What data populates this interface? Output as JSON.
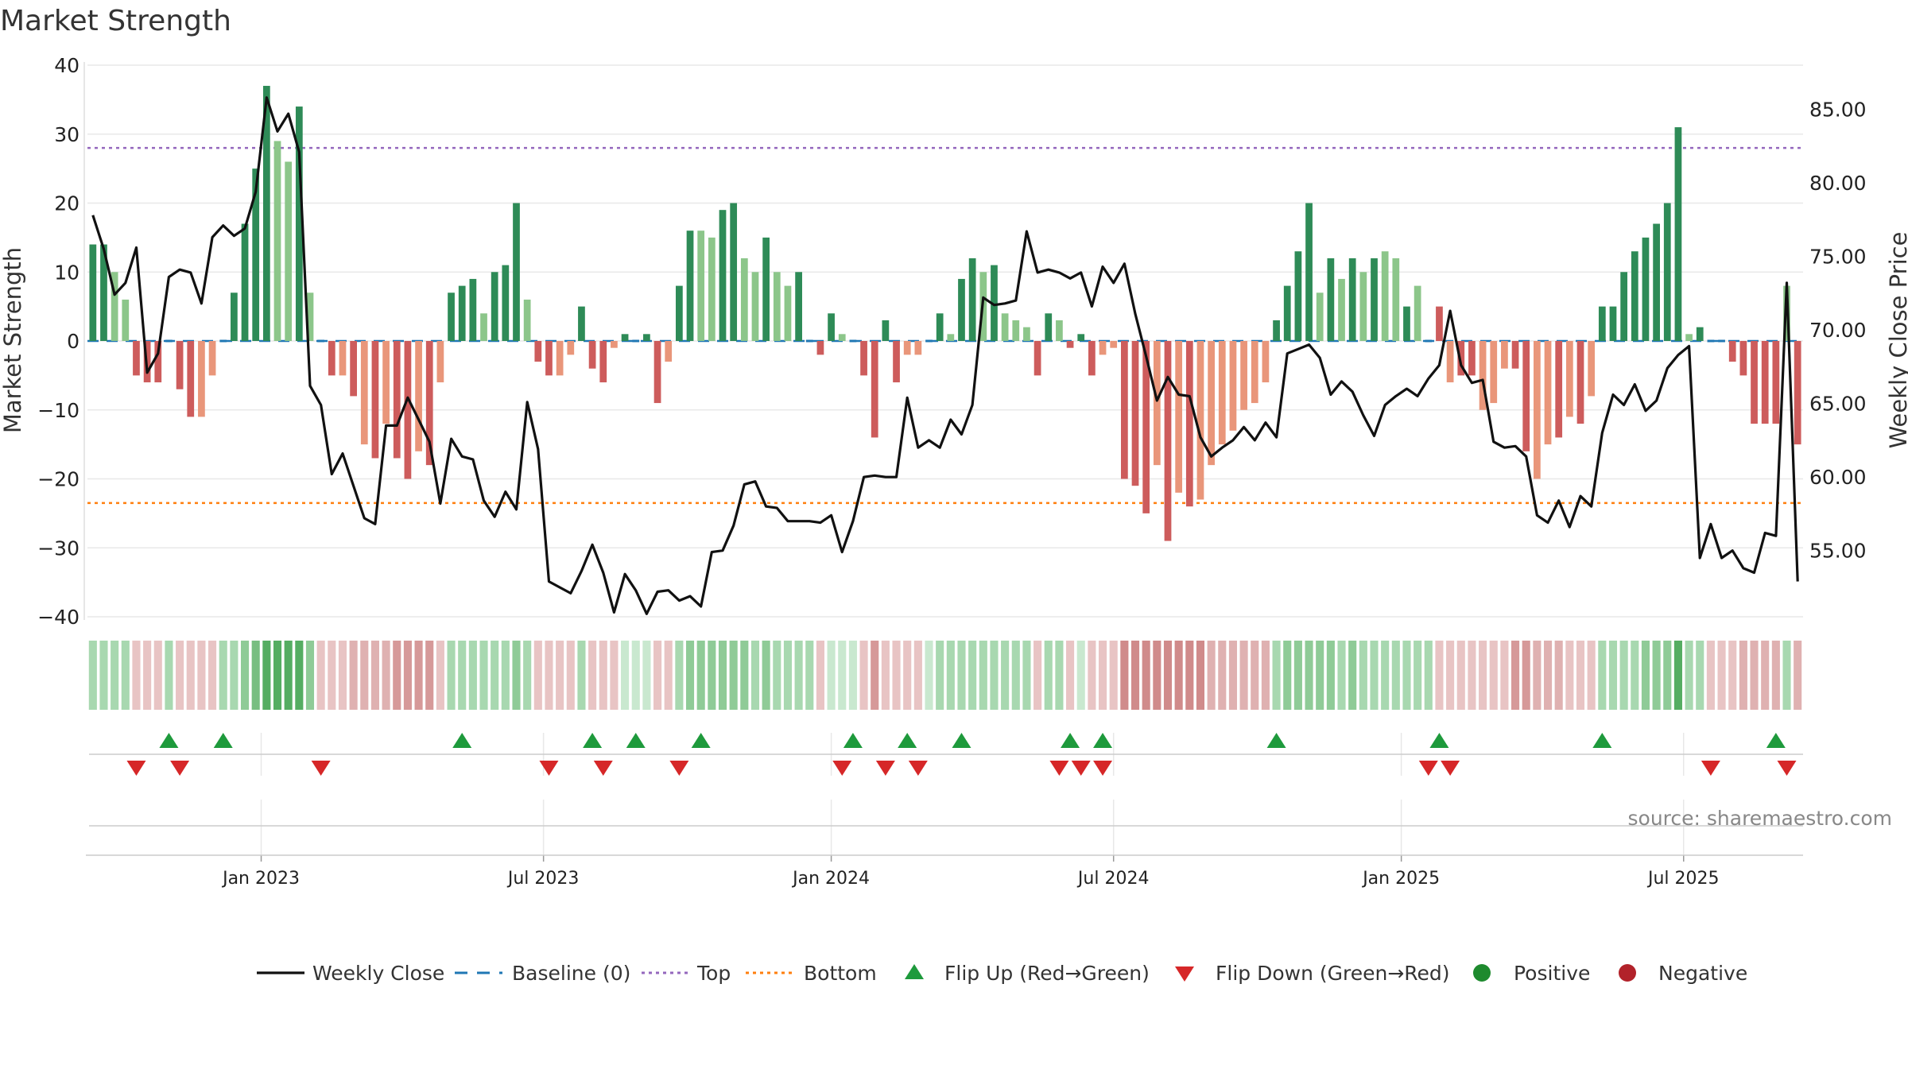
{
  "chart_data": {
    "type": "bar",
    "title": "Market Strength",
    "ylabel_left": "Market Strength",
    "ylabel_right": "Weekly Close Price",
    "ylim_left": [
      -40,
      40
    ],
    "yticks_left": [
      40,
      30,
      20,
      10,
      0,
      -10,
      -20,
      -30,
      -40
    ],
    "yticks_left_labels": [
      "40",
      "30",
      "20",
      "10",
      "0",
      "−10",
      "−20",
      "−30",
      "−40"
    ],
    "ylim_right": [
      50.5,
      88
    ],
    "yticks_right": [
      85,
      80,
      75,
      70,
      65,
      60,
      55
    ],
    "yticks_right_labels": [
      "85.00",
      "80.00",
      "75.00",
      "70.00",
      "65.00",
      "60.00",
      "55.00"
    ],
    "top_level": 28,
    "bottom_level": -23.5,
    "baseline": 0,
    "x_start_week": 0,
    "x_end_week": 160,
    "date_ticks": [
      {
        "label": "Jan 2023",
        "week": 15.5
      },
      {
        "label": "Jul 2023",
        "week": 41.5
      },
      {
        "label": "Jan 2024",
        "week": 68
      },
      {
        "label": "Jul 2024",
        "week": 94
      },
      {
        "label": "Jan 2025",
        "week": 120.5
      },
      {
        "label": "Jul 2025",
        "week": 146.5
      }
    ],
    "strength": [
      14,
      14,
      10,
      6,
      -5,
      -6,
      -6,
      0,
      -7,
      -11,
      -11,
      -5,
      0,
      7,
      17,
      25,
      37,
      29,
      26,
      34,
      7,
      0,
      -5,
      -5,
      -8,
      -15,
      -17,
      -12,
      -17,
      -20,
      -16,
      -18,
      -6,
      7,
      8,
      9,
      4,
      10,
      11,
      20,
      6,
      -3,
      -5,
      -5,
      -2,
      5,
      -4,
      -6,
      -1,
      1,
      0,
      1,
      -9,
      -3,
      8,
      16,
      16,
      15,
      19,
      20,
      12,
      10,
      15,
      10,
      8,
      10,
      0,
      -2,
      4,
      1,
      0,
      -5,
      -14,
      3,
      -6,
      -2,
      -2,
      0,
      4,
      1,
      9,
      12,
      10,
      11,
      4,
      3,
      2,
      -5,
      4,
      3,
      -1,
      1,
      -5,
      -2,
      -1,
      -20,
      -21,
      -25,
      -18,
      -29,
      -22,
      -24,
      -23,
      -18,
      -15,
      -13,
      -10,
      -9,
      -6,
      3,
      8,
      13,
      20,
      7,
      12,
      9,
      12,
      10,
      12,
      13,
      12,
      5,
      8,
      0,
      5,
      -6,
      -5,
      -5,
      -10,
      -9,
      -4,
      -4,
      -16,
      -20,
      -15,
      -14,
      -11,
      -12,
      -8,
      5,
      5,
      10,
      13,
      15,
      17,
      20,
      31,
      1,
      2,
      0,
      0,
      -3,
      -5,
      -12,
      -12,
      -12,
      8,
      -15
    ],
    "strength_colors": [
      "#2e8b57",
      "#2e8b57",
      "#8cc68a",
      "#8cc68a",
      "#cd5c5c",
      "#cd5c5c",
      "#cd5c5c",
      "#8cc68a",
      "#cd5c5c",
      "#cd5c5c",
      "#e9967a",
      "#e9967a",
      "#8cc68a",
      "#2e8b57",
      "#2e8b57",
      "#2e8b57",
      "#2e8b57",
      "#8cc68a",
      "#8cc68a",
      "#2e8b57",
      "#8cc68a",
      "#e9967a",
      "#cd5c5c",
      "#e9967a",
      "#cd5c5c",
      "#e9967a",
      "#cd5c5c",
      "#e9967a",
      "#cd5c5c",
      "#cd5c5c",
      "#e9967a",
      "#cd5c5c",
      "#e9967a",
      "#2e8b57",
      "#2e8b57",
      "#2e8b57",
      "#8cc68a",
      "#2e8b57",
      "#2e8b57",
      "#2e8b57",
      "#8cc68a",
      "#cd5c5c",
      "#cd5c5c",
      "#e9967a",
      "#e9967a",
      "#2e8b57",
      "#cd5c5c",
      "#cd5c5c",
      "#e9967a",
      "#2e8b57",
      "#8cc68a",
      "#2e8b57",
      "#cd5c5c",
      "#e9967a",
      "#2e8b57",
      "#2e8b57",
      "#8cc68a",
      "#8cc68a",
      "#2e8b57",
      "#2e8b57",
      "#8cc68a",
      "#8cc68a",
      "#2e8b57",
      "#8cc68a",
      "#8cc68a",
      "#2e8b57",
      "#8cc68a",
      "#cd5c5c",
      "#2e8b57",
      "#8cc68a",
      "#8cc68a",
      "#cd5c5c",
      "#cd5c5c",
      "#2e8b57",
      "#cd5c5c",
      "#e9967a",
      "#e9967a",
      "#8cc68a",
      "#2e8b57",
      "#8cc68a",
      "#2e8b57",
      "#2e8b57",
      "#8cc68a",
      "#2e8b57",
      "#8cc68a",
      "#8cc68a",
      "#8cc68a",
      "#cd5c5c",
      "#2e8b57",
      "#8cc68a",
      "#cd5c5c",
      "#2e8b57",
      "#cd5c5c",
      "#e9967a",
      "#e9967a",
      "#cd5c5c",
      "#cd5c5c",
      "#cd5c5c",
      "#e9967a",
      "#cd5c5c",
      "#e9967a",
      "#cd5c5c",
      "#e9967a",
      "#e9967a",
      "#e9967a",
      "#e9967a",
      "#e9967a",
      "#e9967a",
      "#e9967a",
      "#2e8b57",
      "#2e8b57",
      "#2e8b57",
      "#2e8b57",
      "#8cc68a",
      "#2e8b57",
      "#8cc68a",
      "#2e8b57",
      "#8cc68a",
      "#2e8b57",
      "#8cc68a",
      "#8cc68a",
      "#2e8b57",
      "#8cc68a",
      "#2e8b57",
      "#cd5c5c",
      "#e9967a",
      "#cd5c5c",
      "#cd5c5c",
      "#e9967a",
      "#e9967a",
      "#e9967a",
      "#cd5c5c",
      "#cd5c5c",
      "#e9967a",
      "#e9967a",
      "#cd5c5c",
      "#e9967a",
      "#cd5c5c",
      "#e9967a",
      "#2e8b57",
      "#2e8b57",
      "#2e8b57",
      "#2e8b57",
      "#2e8b57",
      "#2e8b57",
      "#2e8b57",
      "#2e8b57",
      "#8cc68a",
      "#2e8b57",
      "#8cc68a",
      "#8cc68a",
      "#cd5c5c",
      "#cd5c5c",
      "#cd5c5c",
      "#cd5c5c",
      "#cd5c5c",
      "#8cc68a",
      "#cd5c5c"
    ],
    "close": [
      77.8,
      75.5,
      72.4,
      73.2,
      75.6,
      67.1,
      68.4,
      73.6,
      74.1,
      73.9,
      71.8,
      76.3,
      77.1,
      76.4,
      76.9,
      79.4,
      85.8,
      83.5,
      84.7,
      82.1,
      66.2,
      64.9,
      60.2,
      61.6,
      59.4,
      57.2,
      56.8,
      63.5,
      63.5,
      65.4,
      63.9,
      62.4,
      58.2,
      62.6,
      61.4,
      61.2,
      58.4,
      57.3,
      59.0,
      57.8,
      65.1,
      61.9,
      52.9,
      52.5,
      52.1,
      53.6,
      55.4,
      53.5,
      50.8,
      53.4,
      52.3,
      50.7,
      52.2,
      52.3,
      51.6,
      51.9,
      51.2,
      54.9,
      55.0,
      56.7,
      59.5,
      59.7,
      58.0,
      57.9,
      57.0,
      57.0,
      57.0,
      56.9,
      57.4,
      54.9,
      57.0,
      60.0,
      60.1,
      60.0,
      60.0,
      65.4,
      62.0,
      62.5,
      62.0,
      63.9,
      62.9,
      64.9,
      72.2,
      71.7,
      71.8,
      72.0,
      76.7,
      73.9,
      74.1,
      73.9,
      73.5,
      73.9,
      71.6,
      74.3,
      73.2,
      74.5,
      71.1,
      68.2,
      65.2,
      66.8,
      65.6,
      65.5,
      62.7,
      61.4,
      62.0,
      62.5,
      63.4,
      62.5,
      63.7,
      62.7,
      68.4,
      68.7,
      69.0,
      68.1,
      65.6,
      66.5,
      65.8,
      64.2,
      62.8,
      64.9,
      65.5,
      66.0,
      65.5,
      66.7,
      67.6,
      71.3,
      67.6,
      66.4,
      66.6,
      62.4,
      62.0,
      62.1,
      61.4,
      57.4,
      56.9,
      58.4,
      56.6,
      58.7,
      58.0,
      63.0,
      65.6,
      64.9,
      66.3,
      64.5,
      65.2,
      67.4,
      68.3,
      68.9,
      54.5,
      56.8,
      54.5,
      55.0,
      53.8,
      53.5,
      56.2,
      56.0,
      73.2,
      52.9
    ],
    "band_colors": [
      "#a8d8b0",
      "#a8d8b0",
      "#a8d8b0",
      "#a8d8b0",
      "#e8c4c4",
      "#e8c4c4",
      "#e8c4c4",
      "#a8d8b0",
      "#e8c4c4",
      "#e8c4c4",
      "#e8c4c4",
      "#e8c4c4",
      "#a8d8b0",
      "#a8d8b0",
      "#8fcb97",
      "#78be81",
      "#55ad62",
      "#55ad62",
      "#55ad62",
      "#55ad62",
      "#8fcb97",
      "#e8c4c4",
      "#e8c4c4",
      "#e8c4c4",
      "#dfb1b1",
      "#dfb1b1",
      "#dfb1b1",
      "#dfb1b1",
      "#d69999",
      "#d69999",
      "#d69999",
      "#d69999",
      "#e8c4c4",
      "#a8d8b0",
      "#a8d8b0",
      "#a8d8b0",
      "#a8d8b0",
      "#a8d8b0",
      "#a8d8b0",
      "#8fcb97",
      "#a8d8b0",
      "#e8c4c4",
      "#e8c4c4",
      "#e8c4c4",
      "#e8c4c4",
      "#a8d8b0",
      "#e8c4c4",
      "#e8c4c4",
      "#e8c4c4",
      "#c9e8cf",
      "#c9e8cf",
      "#c9e8cf",
      "#e8c4c4",
      "#e8c4c4",
      "#a8d8b0",
      "#8fcb97",
      "#8fcb97",
      "#8fcb97",
      "#8fcb97",
      "#8fcb97",
      "#8fcb97",
      "#a8d8b0",
      "#8fcb97",
      "#a8d8b0",
      "#a8d8b0",
      "#a8d8b0",
      "#a8d8b0",
      "#e8c4c4",
      "#c9e8cf",
      "#c9e8cf",
      "#c9e8cf",
      "#e8c4c4",
      "#d69999",
      "#e8c4c4",
      "#e8c4c4",
      "#e8c4c4",
      "#e8c4c4",
      "#c9e8cf",
      "#a8d8b0",
      "#a8d8b0",
      "#a8d8b0",
      "#a8d8b0",
      "#a8d8b0",
      "#a8d8b0",
      "#a8d8b0",
      "#a8d8b0",
      "#a8d8b0",
      "#e8c4c4",
      "#a8d8b0",
      "#a8d8b0",
      "#e8c4c4",
      "#c9e8cf",
      "#e8c4c4",
      "#e8c4c4",
      "#e8c4c4",
      "#d08b8b",
      "#d08b8b",
      "#d08b8b",
      "#d08b8b",
      "#d08b8b",
      "#d08b8b",
      "#d08b8b",
      "#d08b8b",
      "#dfb1b1",
      "#dfb1b1",
      "#dfb1b1",
      "#dfb1b1",
      "#dfb1b1",
      "#dfb1b1",
      "#a8d8b0",
      "#8fcb97",
      "#8fcb97",
      "#8fcb97",
      "#8fcb97",
      "#8fcb97",
      "#a8d8b0",
      "#8fcb97",
      "#a8d8b0",
      "#a8d8b0",
      "#a8d8b0",
      "#a8d8b0",
      "#a8d8b0",
      "#a8d8b0",
      "#a8d8b0",
      "#e8c4c4",
      "#e8c4c4",
      "#e8c4c4",
      "#e8c4c4",
      "#e8c4c4",
      "#e8c4c4",
      "#e8c4c4",
      "#d69999",
      "#d69999",
      "#dfb1b1",
      "#dfb1b1",
      "#dfb1b1",
      "#e8c4c4",
      "#e8c4c4",
      "#e8c4c4",
      "#a8d8b0",
      "#a8d8b0",
      "#a8d8b0",
      "#a8d8b0",
      "#8fcb97",
      "#8fcb97",
      "#8fcb97",
      "#55ad62",
      "#a8d8b0",
      "#a8d8b0",
      "#e8c4c4",
      "#e8c4c4",
      "#e8c4c4",
      "#dfb1b1",
      "#dfb1b1",
      "#dfb1b1",
      "#dfb1b1",
      "#a8d8b0",
      "#dfb1b1"
    ],
    "flip_up_weeks": [
      7,
      12,
      34,
      46,
      50,
      56,
      70,
      75,
      80,
      90,
      93,
      109,
      124,
      139,
      155
    ],
    "flip_down_weeks": [
      4,
      8,
      21,
      42,
      47,
      54,
      69,
      73,
      76,
      89,
      91,
      93,
      123,
      125,
      149,
      156
    ],
    "legend": [
      "Weekly Close",
      "Baseline (0)",
      "Top",
      "Bottom",
      "Flip Up (Red→Green)",
      "Flip Down (Green→Red)",
      "Positive",
      "Negative"
    ],
    "legend_placement": "bottom-center",
    "source_text": "source: sharemaestro.com"
  },
  "colors": {
    "close_line": "#111111",
    "baseline": "#1f77b4",
    "top": "#9467bd",
    "bottom": "#ff7f0e",
    "flip_up": "#1e9a3c",
    "flip_down": "#d62728",
    "positive": "#1e8a2e",
    "negative": "#b2222a",
    "grid": "#e8e8e8"
  }
}
